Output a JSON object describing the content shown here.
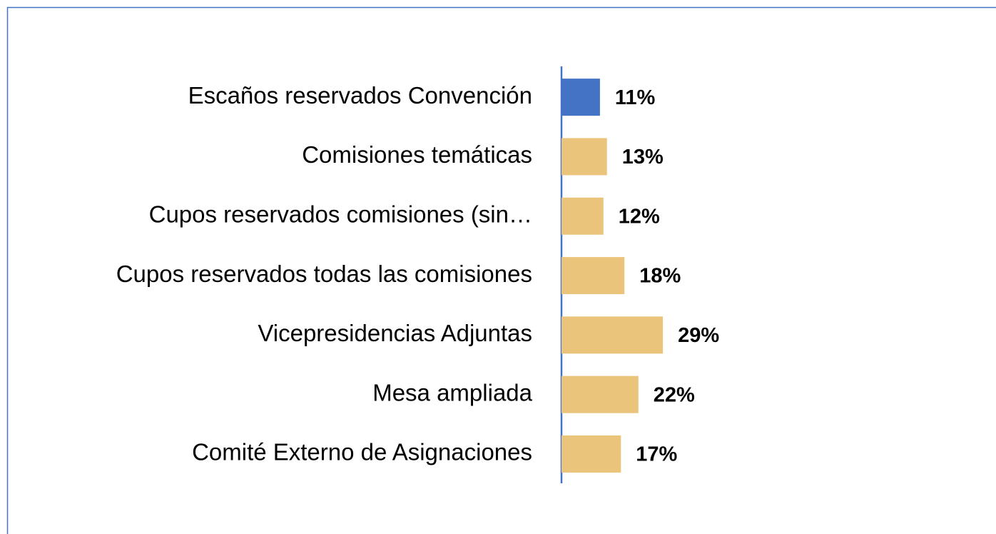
{
  "chart_data": {
    "type": "barh",
    "categories": [
      "Escaños reservados Convención",
      "Comisiones temáticas",
      "Cupos reservados comisiones (sin…",
      "Cupos reservados todas las comisiones",
      "Vicepresidencias Adjuntas",
      "Mesa ampliada",
      "Comité Externo de Asignaciones"
    ],
    "values": [
      11,
      13,
      12,
      18,
      29,
      22,
      17
    ],
    "value_labels": [
      "11%",
      "13%",
      "12%",
      "18%",
      "29%",
      "22%",
      "17%"
    ],
    "colors": [
      "#4472c4",
      "#ebc47c",
      "#ebc47c",
      "#ebc47c",
      "#ebc47c",
      "#ebc47c",
      "#ebc47c"
    ]
  }
}
